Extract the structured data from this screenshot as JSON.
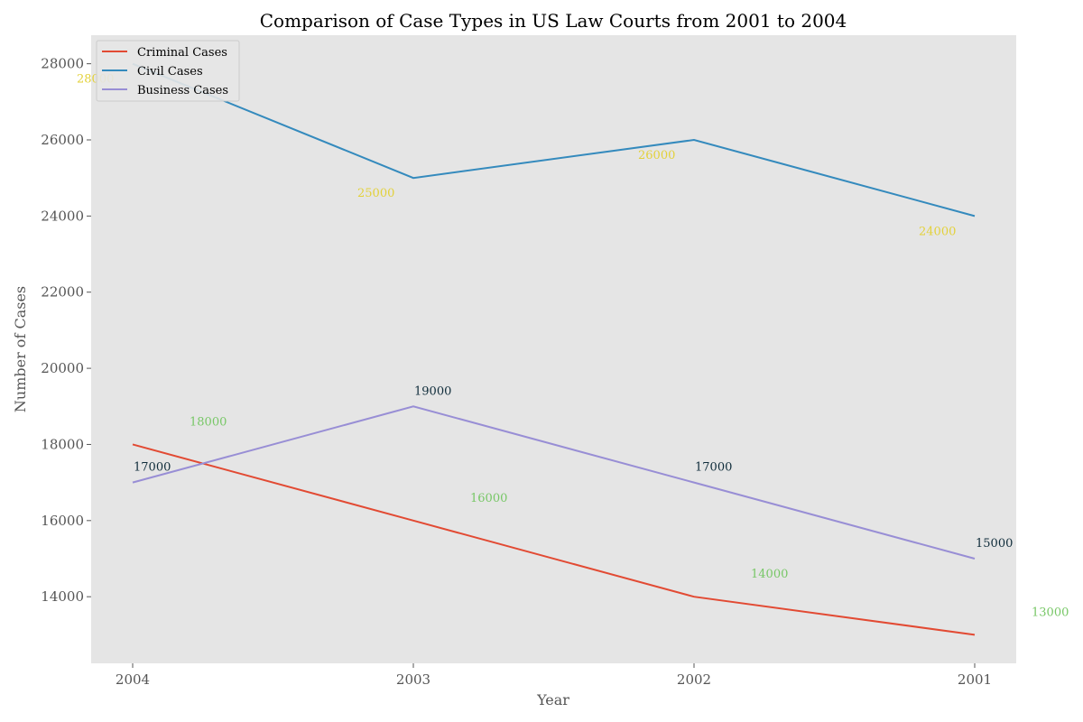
{
  "chart_data": {
    "type": "line",
    "title": "Comparison of Case Types in US Law Courts from 2001 to 2004",
    "xlabel": "Year",
    "ylabel": "Number of Cases",
    "categories": [
      "2004",
      "2003",
      "2002",
      "2001"
    ],
    "ylim": [
      12250,
      28750
    ],
    "yticks": [
      14000,
      16000,
      18000,
      20000,
      22000,
      24000,
      26000,
      28000
    ],
    "grid": false,
    "legend_position": "top-left",
    "background": "#e5e5e5",
    "series": [
      {
        "name": "Criminal Cases",
        "color": "#e24a33",
        "values": [
          18000,
          16000,
          14000,
          13000
        ],
        "labels": [
          "18000",
          "16000",
          "14000",
          "13000"
        ],
        "label_color": "#77c766"
      },
      {
        "name": "Civil Cases",
        "color": "#348abd",
        "values": [
          28000,
          25000,
          26000,
          24000
        ],
        "labels": [
          "28000",
          "25000",
          "26000",
          "24000"
        ],
        "label_color": "#e3d13a"
      },
      {
        "name": "Business Cases",
        "color": "#988ed5",
        "values": [
          17000,
          19000,
          17000,
          15000
        ],
        "labels": [
          "17000",
          "19000",
          "17000",
          "15000"
        ],
        "label_color": "#0f2c3a"
      }
    ]
  }
}
